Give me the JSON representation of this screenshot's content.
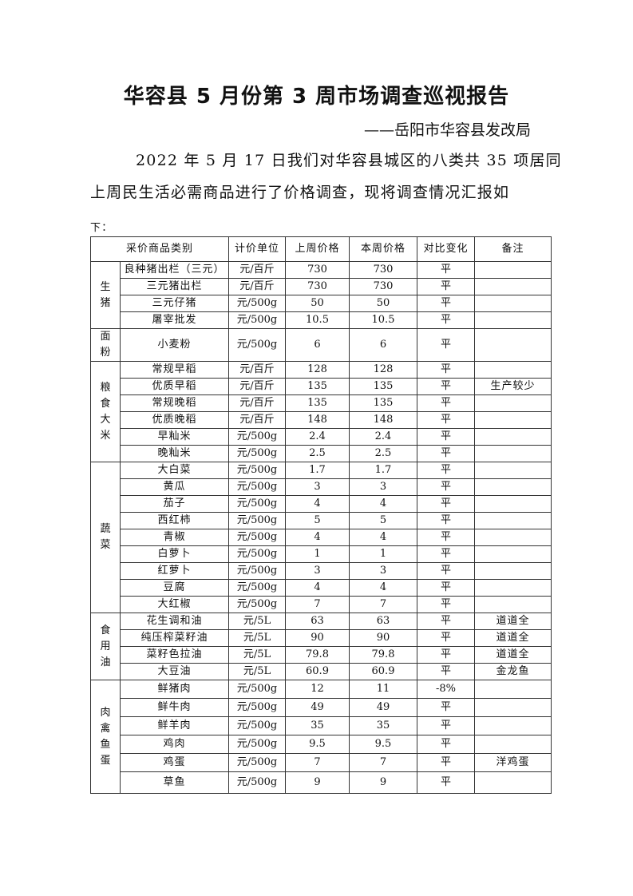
{
  "title": "华容县 5 月份第 3 周市场调查巡视报告",
  "subtitle": "——岳阳市华容县发改局",
  "intro": {
    "line1": "2022 年 5 月 17 日我们对华容县城区的八类共 35 项居同",
    "line2": "上周民生活必需商品进行了价格调查，现将调查情况汇报如",
    "line3": "下："
  },
  "table": {
    "headers": [
      "采价商品类别",
      "计价单位",
      "上周价格",
      "本周价格",
      "对比变化",
      "备注"
    ],
    "groups": [
      {
        "category": "生猪",
        "rows": [
          [
            "良种猪出栏（三元）",
            "元/百斤",
            "730",
            "730",
            "平",
            ""
          ],
          [
            "三元猪出栏",
            "元/百斤",
            "730",
            "730",
            "平",
            ""
          ],
          [
            "三元仔猪",
            "元/500g",
            "50",
            "50",
            "平",
            ""
          ],
          [
            "屠宰批发",
            "元/500g",
            "10.5",
            "10.5",
            "平",
            ""
          ]
        ]
      },
      {
        "category": "面粉",
        "rows": [
          [
            "小麦粉",
            "元/500g",
            "6",
            "6",
            "平",
            ""
          ]
        ]
      },
      {
        "category": "粮食大米",
        "rows": [
          [
            "常规早稻",
            "元/百斤",
            "128",
            "128",
            "平",
            ""
          ],
          [
            "优质早稻",
            "元/百斤",
            "135",
            "135",
            "平",
            "生产较少"
          ],
          [
            "常规晚稻",
            "元/百斤",
            "135",
            "135",
            "平",
            ""
          ],
          [
            "优质晚稻",
            "元/百斤",
            "148",
            "148",
            "平",
            ""
          ],
          [
            "早籼米",
            "元/500g",
            "2.4",
            "2.4",
            "平",
            ""
          ],
          [
            "晚籼米",
            "元/500g",
            "2.5",
            "2.5",
            "平",
            ""
          ]
        ]
      },
      {
        "category": "蔬菜",
        "rows": [
          [
            "大白菜",
            "元/500g",
            "1.7",
            "1.7",
            "平",
            ""
          ],
          [
            "黄瓜",
            "元/500g",
            "3",
            "3",
            "平",
            ""
          ],
          [
            "茄子",
            "元/500g",
            "4",
            "4",
            "平",
            ""
          ],
          [
            "西红柿",
            "元/500g",
            "5",
            "5",
            "平",
            ""
          ],
          [
            "青椒",
            "元/500g",
            "4",
            "4",
            "平",
            ""
          ],
          [
            "白萝卜",
            "元/500g",
            "1",
            "1",
            "平",
            ""
          ],
          [
            "红萝卜",
            "元/500g",
            "3",
            "3",
            "平",
            ""
          ],
          [
            "豆腐",
            "元/500g",
            "4",
            "4",
            "平",
            ""
          ],
          [
            "大红椒",
            "元/500g",
            "7",
            "7",
            "平",
            ""
          ]
        ]
      },
      {
        "category": "食用油",
        "rows": [
          [
            "花生调和油",
            "元/5L",
            "63",
            "63",
            "平",
            "道道全"
          ],
          [
            "纯压榨菜籽油",
            "元/5L",
            "90",
            "90",
            "平",
            "道道全"
          ],
          [
            "菜籽色拉油",
            "元/5L",
            "79.8",
            "79.8",
            "平",
            "道道全"
          ],
          [
            "大豆油",
            "元/5L",
            "60.9",
            "60.9",
            "平",
            "金龙鱼"
          ]
        ]
      },
      {
        "category": "肉禽鱼蛋",
        "rows": [
          [
            "鲜猪肉",
            "元/500g",
            "12",
            "11",
            "-8%",
            ""
          ],
          [
            "鲜牛肉",
            "元/500g",
            "49",
            "49",
            "平",
            ""
          ],
          [
            "鲜羊肉",
            "元/500g",
            "35",
            "35",
            "平",
            ""
          ],
          [
            "鸡肉",
            "元/500g",
            "9.5",
            "9.5",
            "平",
            ""
          ],
          [
            "鸡蛋",
            "元/500g",
            "7",
            "7",
            "平",
            "洋鸡蛋"
          ],
          [
            "草鱼",
            "元/500g",
            "9",
            "9",
            "平",
            ""
          ]
        ]
      }
    ]
  }
}
